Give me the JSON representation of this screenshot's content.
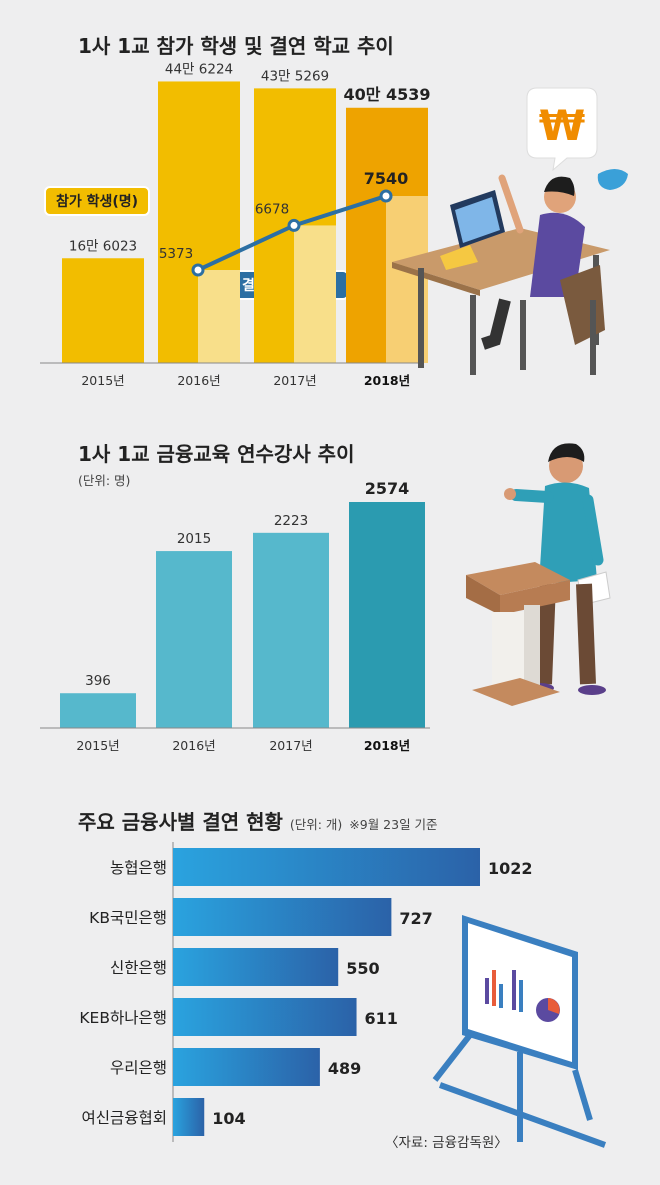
{
  "colors": {
    "gold": "#f2bd00",
    "gold_light": "#f8df8a",
    "orange": "#eea300",
    "orange_light": "#f7cf73",
    "line": "#2c6fa3",
    "teal": "#56b8cc",
    "teal_dark": "#2b9bb0",
    "hbar": "#2187c4"
  },
  "chart_data": [
    {
      "type": "bar",
      "title": "1사 1교 참가 학생 및 결연 학교 추이",
      "categories": [
        "2015년",
        "2016년",
        "2017년",
        "2018년"
      ],
      "highlight_index": 3,
      "series": [
        {
          "name": "참가 학생(명)",
          "values": [
            166023,
            446224,
            435269,
            404539
          ],
          "labels": [
            "16만 6023",
            "44만 6224",
            "43만 5269",
            "40만 4539"
          ]
        },
        {
          "name": "결연 학교(개교)",
          "type": "line",
          "values": [
            null,
            5373,
            6678,
            7540
          ],
          "labels": [
            "",
            "5373",
            "6678",
            "7540"
          ]
        }
      ]
    },
    {
      "type": "bar",
      "title": "1사 1교 금융교육 연수강사 추이",
      "unit": "(단위: 명)",
      "categories": [
        "2015년",
        "2016년",
        "2017년",
        "2018년"
      ],
      "highlight_index": 3,
      "values": [
        396,
        2015,
        2223,
        2574
      ]
    },
    {
      "type": "bar",
      "orientation": "horizontal",
      "title": "주요 금융사별 결연 현황",
      "unit": "(단위: 개)",
      "note": "※9월 23일 기준",
      "categories": [
        "농협은행",
        "KB국민은행",
        "신한은행",
        "KEB하나은행",
        "우리은행",
        "여신금융협회"
      ],
      "values": [
        1022,
        727,
        550,
        611,
        489,
        104
      ]
    }
  ],
  "source": "〈자료: 금융감독원〉"
}
